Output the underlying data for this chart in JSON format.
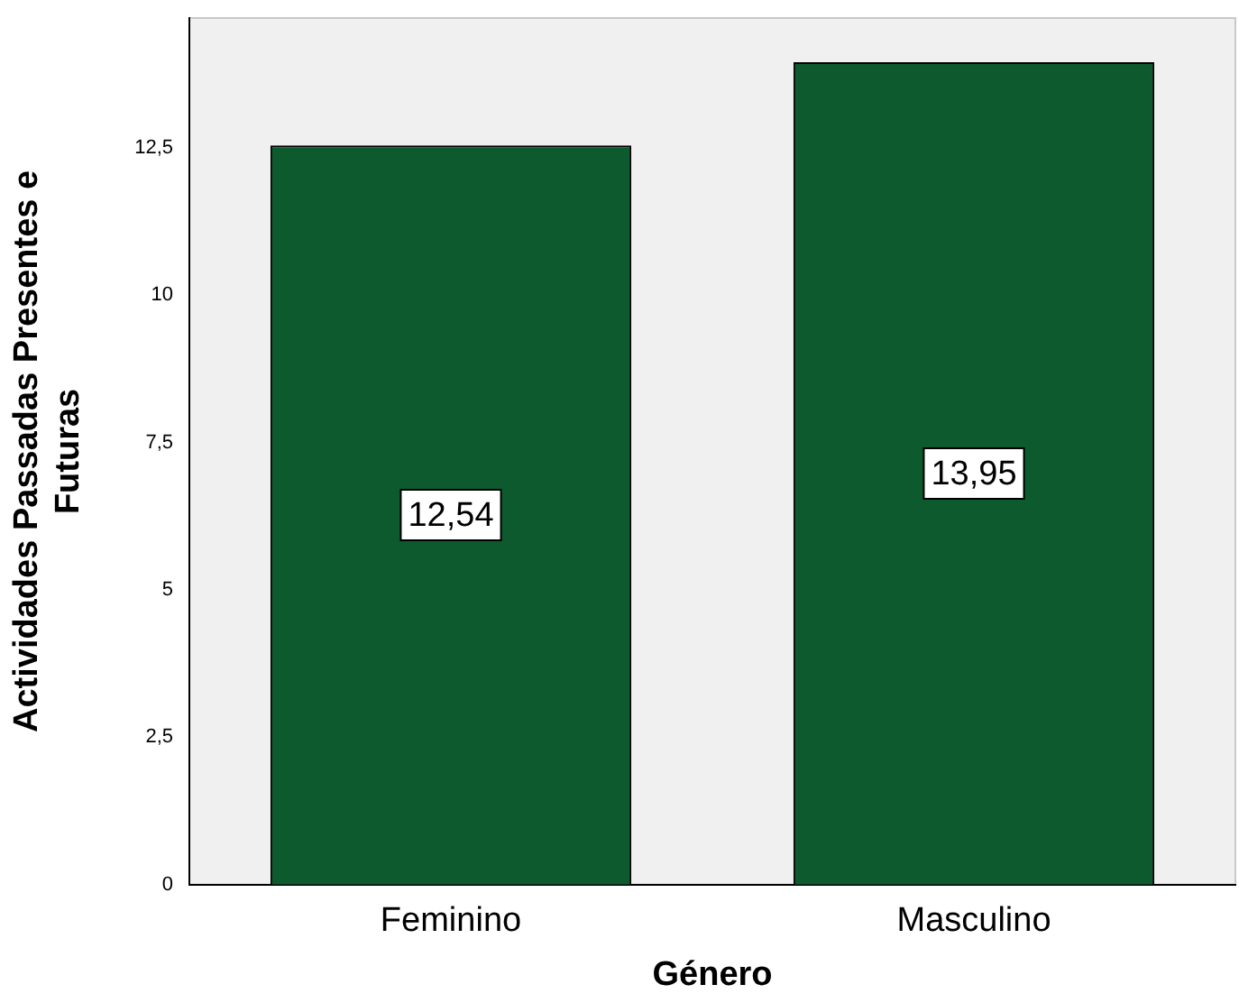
{
  "chart_data": {
    "type": "bar",
    "xlabel": "Género",
    "ylabel": "Actividades Passadas Presentes e Futuras",
    "categories": [
      "Feminino",
      "Masculino"
    ],
    "values": [
      12.54,
      13.95
    ],
    "value_labels": [
      "12,54",
      "13,95"
    ],
    "color": "#0c5a2e",
    "ylim": [
      0,
      14.7
    ],
    "yticks": [
      0,
      {
        "value": 2.5,
        "label": "2,5"
      },
      5,
      {
        "value": 7.5,
        "label": "7,5"
      },
      10,
      {
        "value": 12.5,
        "label": "12,5"
      }
    ],
    "grid": false,
    "legend": false
  }
}
